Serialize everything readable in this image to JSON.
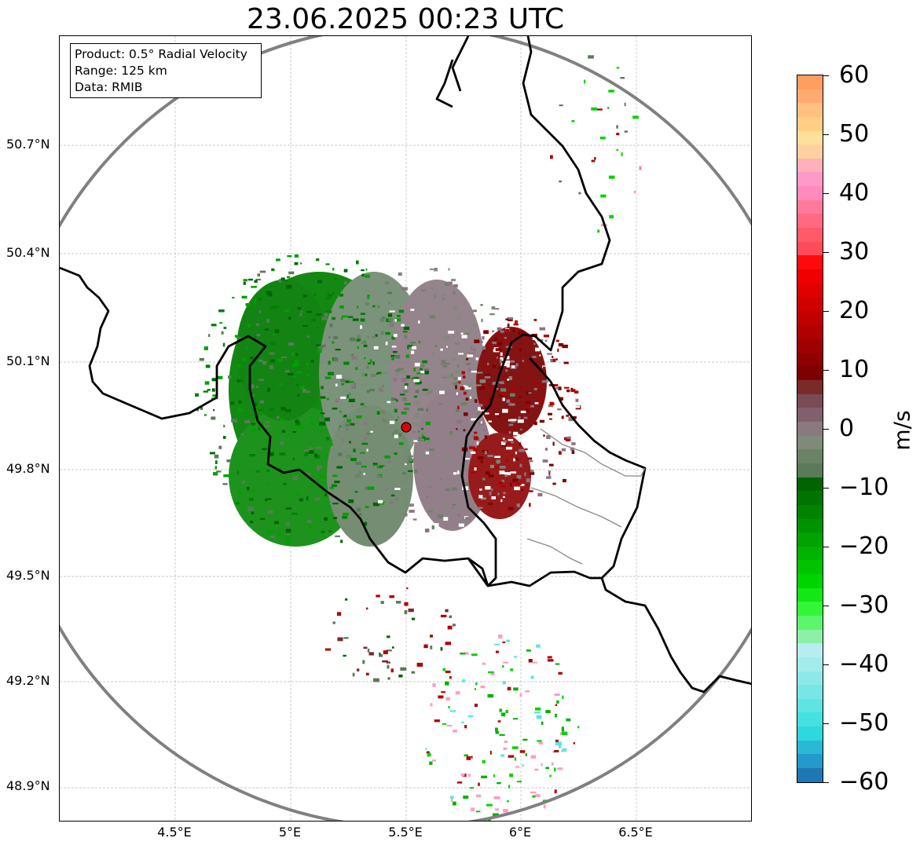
{
  "title": "23.06.2025 00:23 UTC",
  "info": {
    "product": "Product: 0.5° Radial Velocity",
    "range": "Range: 125 km",
    "data": "Data: RMIB"
  },
  "latitude_ticks": [
    "50.7°N",
    "50.4°N",
    "50.1°N",
    "49.8°N",
    "49.5°N",
    "49.2°N",
    "48.9°N"
  ],
  "longitude_ticks": [
    "4.5°E",
    "5°E",
    "5.5°E",
    "6°E",
    "6.5°E"
  ],
  "colorbar": {
    "label": "m/s",
    "ticks": [
      "60",
      "50",
      "40",
      "30",
      "20",
      "10",
      "0",
      "−10",
      "−20",
      "−30",
      "−40",
      "−50",
      "−60"
    ],
    "range": [
      -60,
      60
    ],
    "colors_low_to_high": [
      "#1f78b4",
      "#229bcc",
      "#29b9d4",
      "#2fd8dc",
      "#45e0e0",
      "#5fe3e3",
      "#78e6e6",
      "#8de9e9",
      "#a3ecec",
      "#b6eef0",
      "#8cf0a8",
      "#5ef56e",
      "#33f53a",
      "#12e814",
      "#00d400",
      "#00c400",
      "#00b300",
      "#00a300",
      "#009300",
      "#008400",
      "#007400",
      "#006400",
      "#5a7a5a",
      "#6a8266",
      "#7f8a7a",
      "#8a7a80",
      "#80606c",
      "#7a4a55",
      "#7a2a2a",
      "#7f0000",
      "#8f0000",
      "#9f0000",
      "#b00000",
      "#c00000",
      "#d00000",
      "#e00000",
      "#f00000",
      "#ff0a0a",
      "#ff4a5a",
      "#ff5a6a",
      "#ff6a80",
      "#ff7a9a",
      "#ff8abb",
      "#ff9ac8",
      "#ffb0b8",
      "#ffd0a0",
      "#ffe09a",
      "#ffcf85",
      "#ffc080",
      "#ffaa70",
      "#ff9e60"
    ]
  },
  "map": {
    "lon_range": [
      4.0,
      7.0
    ],
    "lat_range": [
      48.8,
      50.99
    ],
    "radar_site": {
      "lon": 5.505,
      "lat": 49.914
    },
    "range_ring_color": "#808080",
    "border_color": "#000000",
    "grid_color": "#b0b0b0"
  }
}
